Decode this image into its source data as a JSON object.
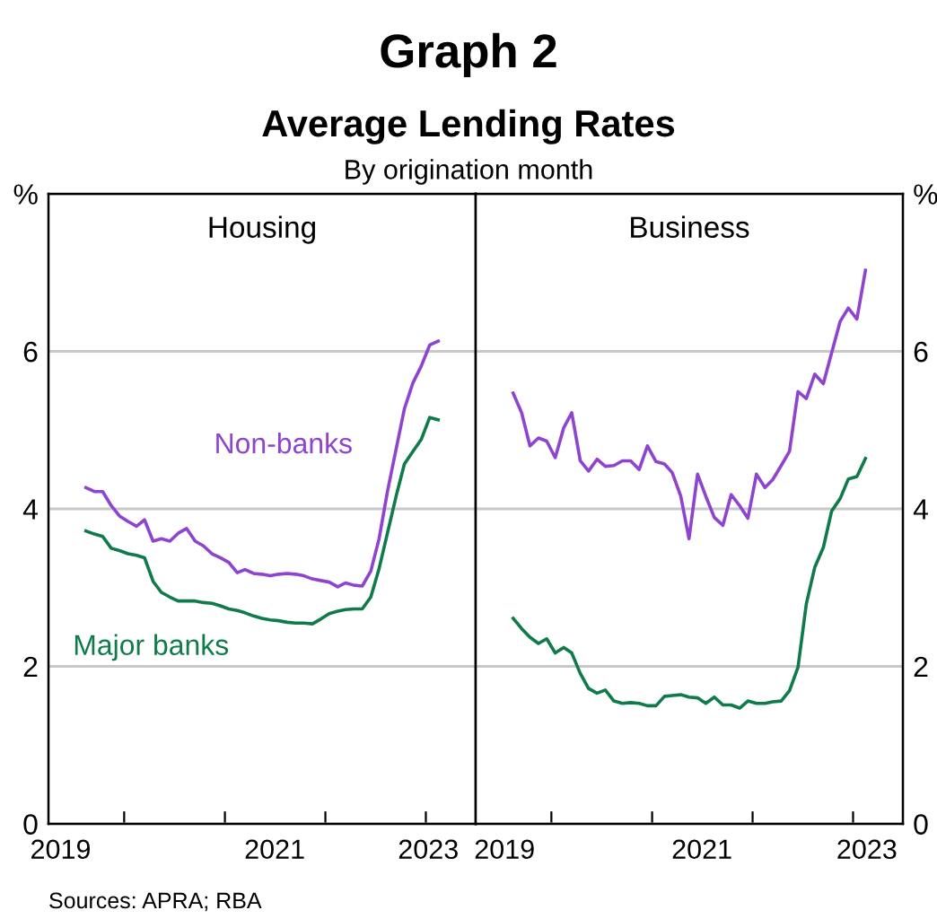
{
  "chart_data": [
    {
      "type": "line",
      "title": "Housing",
      "annotations": [
        "Graph 2",
        "Average Lending Rates",
        "By origination month",
        "Sources: APRA; RBA"
      ],
      "x": [
        "2019-08",
        "2019-09",
        "2019-10",
        "2019-11",
        "2019-12",
        "2020-01",
        "2020-02",
        "2020-03",
        "2020-04",
        "2020-05",
        "2020-06",
        "2020-07",
        "2020-08",
        "2020-09",
        "2020-10",
        "2020-11",
        "2020-12",
        "2021-01",
        "2021-02",
        "2021-03",
        "2021-04",
        "2021-05",
        "2021-06",
        "2021-07",
        "2021-08",
        "2021-09",
        "2021-10",
        "2021-11",
        "2021-12",
        "2022-01",
        "2022-02",
        "2022-03",
        "2022-04",
        "2022-05",
        "2022-06",
        "2022-07",
        "2022-08",
        "2022-09",
        "2022-10",
        "2022-11",
        "2022-12",
        "2023-01",
        "2023-02"
      ],
      "series": [
        {
          "name": "Non-banks",
          "color": "#8f44d0",
          "values": [
            4.27,
            4.22,
            4.22,
            4.04,
            3.91,
            3.84,
            3.78,
            3.86,
            3.59,
            3.62,
            3.59,
            3.69,
            3.75,
            3.59,
            3.53,
            3.43,
            3.38,
            3.32,
            3.19,
            3.23,
            3.18,
            3.17,
            3.15,
            3.17,
            3.18,
            3.17,
            3.15,
            3.11,
            3.09,
            3.07,
            3.01,
            3.06,
            3.03,
            3.02,
            3.21,
            3.62,
            4.23,
            4.76,
            5.27,
            5.6,
            5.81,
            6.08,
            6.13
          ]
        },
        {
          "name": "Major banks",
          "color": "#0f7b4a",
          "values": [
            3.72,
            3.68,
            3.65,
            3.5,
            3.47,
            3.43,
            3.41,
            3.38,
            3.08,
            2.94,
            2.88,
            2.83,
            2.83,
            2.83,
            2.81,
            2.8,
            2.77,
            2.73,
            2.71,
            2.68,
            2.64,
            2.61,
            2.59,
            2.58,
            2.56,
            2.55,
            2.55,
            2.54,
            2.6,
            2.67,
            2.7,
            2.72,
            2.73,
            2.73,
            2.88,
            3.24,
            3.7,
            4.16,
            4.57,
            4.73,
            4.88,
            5.16,
            5.13
          ]
        }
      ],
      "xlim": [
        "2019-04-01",
        "2023-07-01"
      ],
      "xticks": [
        {
          "value": "2019-05-15",
          "label": "2019"
        },
        {
          "value": "2020-01-01",
          "label": null
        },
        {
          "value": "2021-01-01",
          "label": null
        },
        {
          "value": "2021-07-01",
          "label": "2021"
        },
        {
          "value": "2022-01-01",
          "label": null
        },
        {
          "value": "2023-01-01",
          "label": null
        },
        {
          "value": "2023-01-10",
          "label": "2023"
        }
      ],
      "ylim": [
        0,
        8
      ],
      "yticks": [
        0,
        2,
        4,
        6,
        {
          "value": 8,
          "label": "%"
        }
      ],
      "grid": "y",
      "legend": false
    },
    {
      "type": "line",
      "title": "Business",
      "x": [
        "2019-08",
        "2019-09",
        "2019-10",
        "2019-11",
        "2019-12",
        "2020-01",
        "2020-02",
        "2020-03",
        "2020-04",
        "2020-05",
        "2020-06",
        "2020-07",
        "2020-08",
        "2020-09",
        "2020-10",
        "2020-11",
        "2020-12",
        "2021-01",
        "2021-02",
        "2021-03",
        "2021-04",
        "2021-05",
        "2021-06",
        "2021-07",
        "2021-08",
        "2021-09",
        "2021-10",
        "2021-11",
        "2021-12",
        "2022-01",
        "2022-02",
        "2022-03",
        "2022-04",
        "2022-05",
        "2022-06",
        "2022-07",
        "2022-08",
        "2022-09",
        "2022-10",
        "2022-11",
        "2022-12",
        "2023-01",
        "2023-02"
      ],
      "series": [
        {
          "color": "#8f44d0",
          "values": [
            5.47,
            5.22,
            4.8,
            4.9,
            4.86,
            4.65,
            5.03,
            5.22,
            4.61,
            4.48,
            4.63,
            4.54,
            4.55,
            4.61,
            4.61,
            4.5,
            4.8,
            4.6,
            4.57,
            4.46,
            4.16,
            3.62,
            4.44,
            4.16,
            3.89,
            3.79,
            4.18,
            4.04,
            3.88,
            4.44,
            4.27,
            4.37,
            4.55,
            4.73,
            5.49,
            5.4,
            5.71,
            5.59,
            5.98,
            6.38,
            6.55,
            6.41,
            7.03
          ]
        },
        {
          "color": "#0f7b4a",
          "values": [
            2.61,
            2.48,
            2.37,
            2.29,
            2.35,
            2.17,
            2.24,
            2.17,
            1.91,
            1.72,
            1.66,
            1.7,
            1.56,
            1.53,
            1.54,
            1.53,
            1.5,
            1.5,
            1.62,
            1.63,
            1.64,
            1.61,
            1.6,
            1.53,
            1.61,
            1.51,
            1.51,
            1.47,
            1.56,
            1.53,
            1.53,
            1.55,
            1.56,
            1.69,
            1.99,
            2.79,
            3.26,
            3.51,
            3.97,
            4.13,
            4.38,
            4.41,
            4.64
          ]
        }
      ],
      "xlim": [
        "2019-04-01",
        "2023-07-01"
      ],
      "xticks": [
        {
          "value": "2019-07-15",
          "label": "2019"
        },
        {
          "value": "2020-01-01",
          "label": null
        },
        {
          "value": "2021-01-01",
          "label": null
        },
        {
          "value": "2021-07-01",
          "label": "2021"
        },
        {
          "value": "2022-01-01",
          "label": null
        },
        {
          "value": "2023-01-01",
          "label": null
        },
        {
          "value": "2023-02-20",
          "label": "2023"
        }
      ],
      "ylim": [
        0,
        8
      ],
      "yticks": [
        0,
        2,
        4,
        6,
        {
          "value": 8,
          "label": "%"
        }
      ],
      "grid": "y",
      "legend": false
    }
  ]
}
